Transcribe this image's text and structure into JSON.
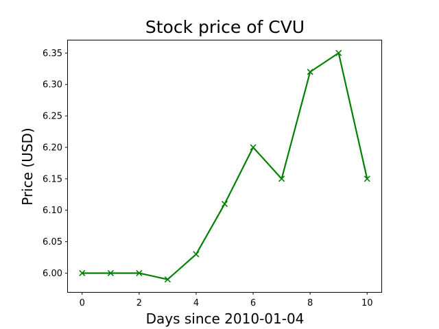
{
  "chart_data": {
    "type": "line",
    "title": "Stock price of CVU",
    "xlabel": "Days since 2010-01-04",
    "ylabel": "Price (USD)",
    "xlim": [
      -0.5,
      10.5
    ],
    "ylim": [
      5.97,
      6.37
    ],
    "xticks": [
      0,
      2,
      4,
      6,
      8,
      10
    ],
    "xtick_labels": [
      "0",
      "2",
      "4",
      "6",
      "8",
      "10"
    ],
    "yticks": [
      6.0,
      6.05,
      6.1,
      6.15,
      6.2,
      6.25,
      6.3,
      6.35
    ],
    "ytick_labels": [
      "6.00",
      "6.05",
      "6.10",
      "6.15",
      "6.20",
      "6.25",
      "6.30",
      "6.35"
    ],
    "grid": false,
    "series": [
      {
        "color": "#008000",
        "marker": "x",
        "x": [
          0,
          1,
          2,
          3,
          4,
          5,
          6,
          7,
          8,
          9,
          10
        ],
        "y": [
          6.0,
          6.0,
          6.0,
          5.99,
          6.03,
          6.11,
          6.2,
          6.15,
          6.32,
          6.35,
          6.15
        ]
      }
    ]
  }
}
